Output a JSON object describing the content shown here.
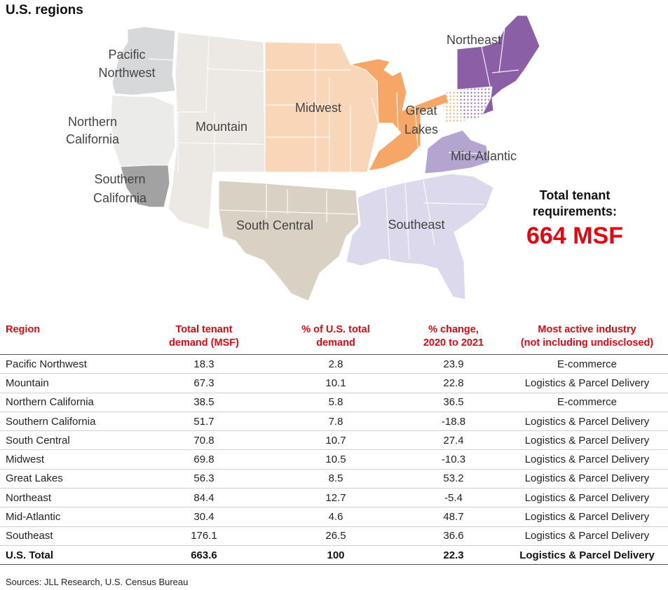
{
  "title": "U.S. regions",
  "map": {
    "labels": {
      "pacific_nw": [
        "Pacific",
        "Northwest"
      ],
      "northern_ca": [
        "Northern",
        "California"
      ],
      "southern_ca": [
        "Southern",
        "California"
      ],
      "mountain": "Mountain",
      "midwest": "Midwest",
      "great_lakes": [
        "Great",
        "Lakes"
      ],
      "northeast": "Northeast",
      "mid_atlantic": "Mid-Atlantic",
      "south_central": "South Central",
      "southeast": "Southeast"
    },
    "colors": {
      "pacific_nw": "#d7d8da",
      "northern_ca": "#ebebe9",
      "southern_ca": "#a2a2a2",
      "mountain": "#ece9e4",
      "midwest": "#f9d6b8",
      "great_lakes": "#f6a666",
      "northeast": "#8b5fa6",
      "mid_atlantic": "#b3a5d0",
      "south_central": "#d9d1c3",
      "southeast": "#ddd9ec"
    }
  },
  "summary": {
    "label_line1": "Total tenant",
    "label_line2": "requirements:",
    "value": "664 MSF"
  },
  "table": {
    "headers": {
      "region": "Region",
      "demand_1": "Total tenant",
      "demand_2": "demand (MSF)",
      "pct_1": "% of U.S. total",
      "pct_2": "demand",
      "chg_1": "% change,",
      "chg_2": "2020 to 2021",
      "ind_1": "Most active industry",
      "ind_2": "(not including undisclosed)"
    },
    "rows": [
      {
        "region": "Pacific Northwest",
        "demand": "18.3",
        "pct": "2.8",
        "change": "23.9",
        "industry": "E-commerce"
      },
      {
        "region": "Mountain",
        "demand": "67.3",
        "pct": "10.1",
        "change": "22.8",
        "industry": "Logistics & Parcel Delivery"
      },
      {
        "region": "Northern California",
        "demand": "38.5",
        "pct": "5.8",
        "change": "36.5",
        "industry": "E-commerce"
      },
      {
        "region": "Southern California",
        "demand": "51.7",
        "pct": "7.8",
        "change": "-18.8",
        "industry": "Logistics & Parcel Delivery"
      },
      {
        "region": "South Central",
        "demand": "70.8",
        "pct": "10.7",
        "change": "27.4",
        "industry": "Logistics & Parcel Delivery"
      },
      {
        "region": "Midwest",
        "demand": "69.8",
        "pct": "10.5",
        "change": "-10.3",
        "industry": "Logistics & Parcel Delivery"
      },
      {
        "region": "Great Lakes",
        "demand": "56.3",
        "pct": "8.5",
        "change": "53.2",
        "industry": "Logistics & Parcel Delivery"
      },
      {
        "region": "Northeast",
        "demand": "84.4",
        "pct": "12.7",
        "change": "-5.4",
        "industry": "Logistics & Parcel Delivery"
      },
      {
        "region": "Mid-Atlantic",
        "demand": "30.4",
        "pct": "4.6",
        "change": "48.7",
        "industry": "Logistics & Parcel Delivery"
      },
      {
        "region": "Southeast",
        "demand": "176.1",
        "pct": "26.5",
        "change": "36.6",
        "industry": "Logistics & Parcel Delivery"
      }
    ],
    "total": {
      "region": "U.S. Total",
      "demand": "663.6",
      "pct": "100",
      "change": "22.3",
      "industry": "Logistics & Parcel Delivery"
    }
  },
  "sources": "Sources: JLL Research, U.S. Census Bureau"
}
